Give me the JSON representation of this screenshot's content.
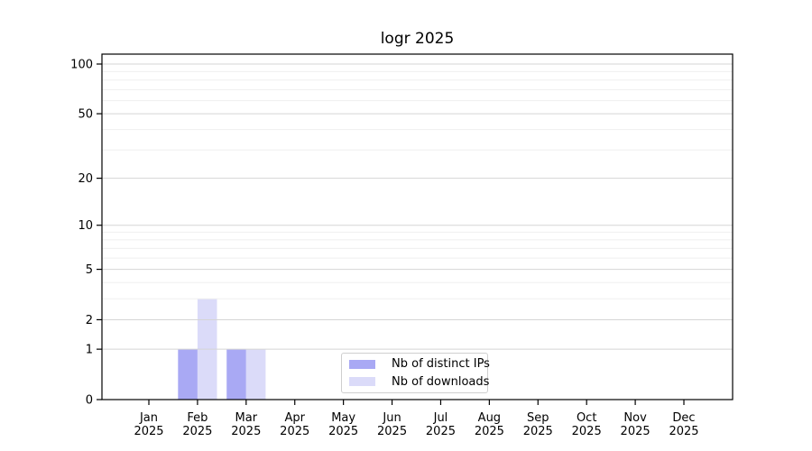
{
  "title": "logr 2025",
  "chart_data": {
    "type": "bar",
    "title": "logr 2025",
    "categories": [
      "Jan",
      "Feb",
      "Mar",
      "Apr",
      "May",
      "Jun",
      "Jul",
      "Aug",
      "Sep",
      "Oct",
      "Nov",
      "Dec"
    ],
    "x_sublabel_year": "2025",
    "series": [
      {
        "name": "Nb of distinct IPs",
        "color": "#a9a9f4",
        "values": [
          0,
          1,
          1,
          0,
          0,
          0,
          0,
          0,
          0,
          0,
          0,
          0
        ]
      },
      {
        "name": "Nb of downloads",
        "color": "#dbdbf9",
        "values": [
          0,
          3,
          1,
          0,
          0,
          0,
          0,
          0,
          0,
          0,
          0,
          0
        ]
      }
    ],
    "yaxis": {
      "scale": "log10(1+v)",
      "ticks": [
        0,
        1,
        2,
        5,
        10,
        20,
        50,
        100
      ],
      "minor_ticks": [
        3,
        4,
        6,
        7,
        8,
        9,
        30,
        40,
        60,
        70,
        80,
        90
      ],
      "ylim_top_approx": 115
    },
    "grid": true,
    "legend_position": "inside-bottom-center"
  },
  "legend": {
    "items": [
      {
        "label": "Nb of distinct IPs",
        "color": "#a9a9f4"
      },
      {
        "label": "Nb of downloads",
        "color": "#dbdbf9"
      }
    ]
  },
  "colors": {
    "background": "#ffffff",
    "axis": "#000000",
    "major_grid": "#d5d5d5",
    "minor_grid": "#efefef",
    "legend_border": "#cfcfcf"
  }
}
